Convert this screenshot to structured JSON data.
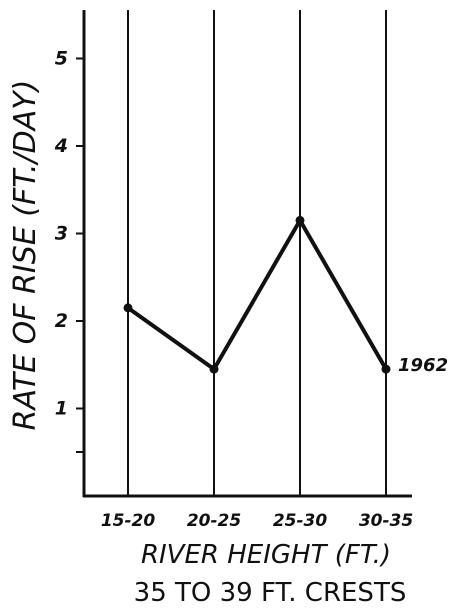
{
  "chart_data": {
    "type": "line",
    "categories": [
      "15-20",
      "20-25",
      "25-30",
      "30-35"
    ],
    "series": [
      {
        "name": "1962",
        "values": [
          2.15,
          1.45,
          3.15,
          1.45
        ]
      }
    ],
    "y_ticks": [
      "1",
      "2",
      "3",
      "4",
      "5"
    ],
    "ylim": [
      0,
      5.5
    ],
    "grid": "vertical lines at each category",
    "xlabel": "RIVER HEIGHT (FT.)",
    "ylabel": "RATE OF RISE (FT./DAY)",
    "caption": "35 TO 39 FT. CRESTS",
    "colors": {
      "line": "#111111",
      "grid": "#111111",
      "background": "#ffffff"
    }
  }
}
